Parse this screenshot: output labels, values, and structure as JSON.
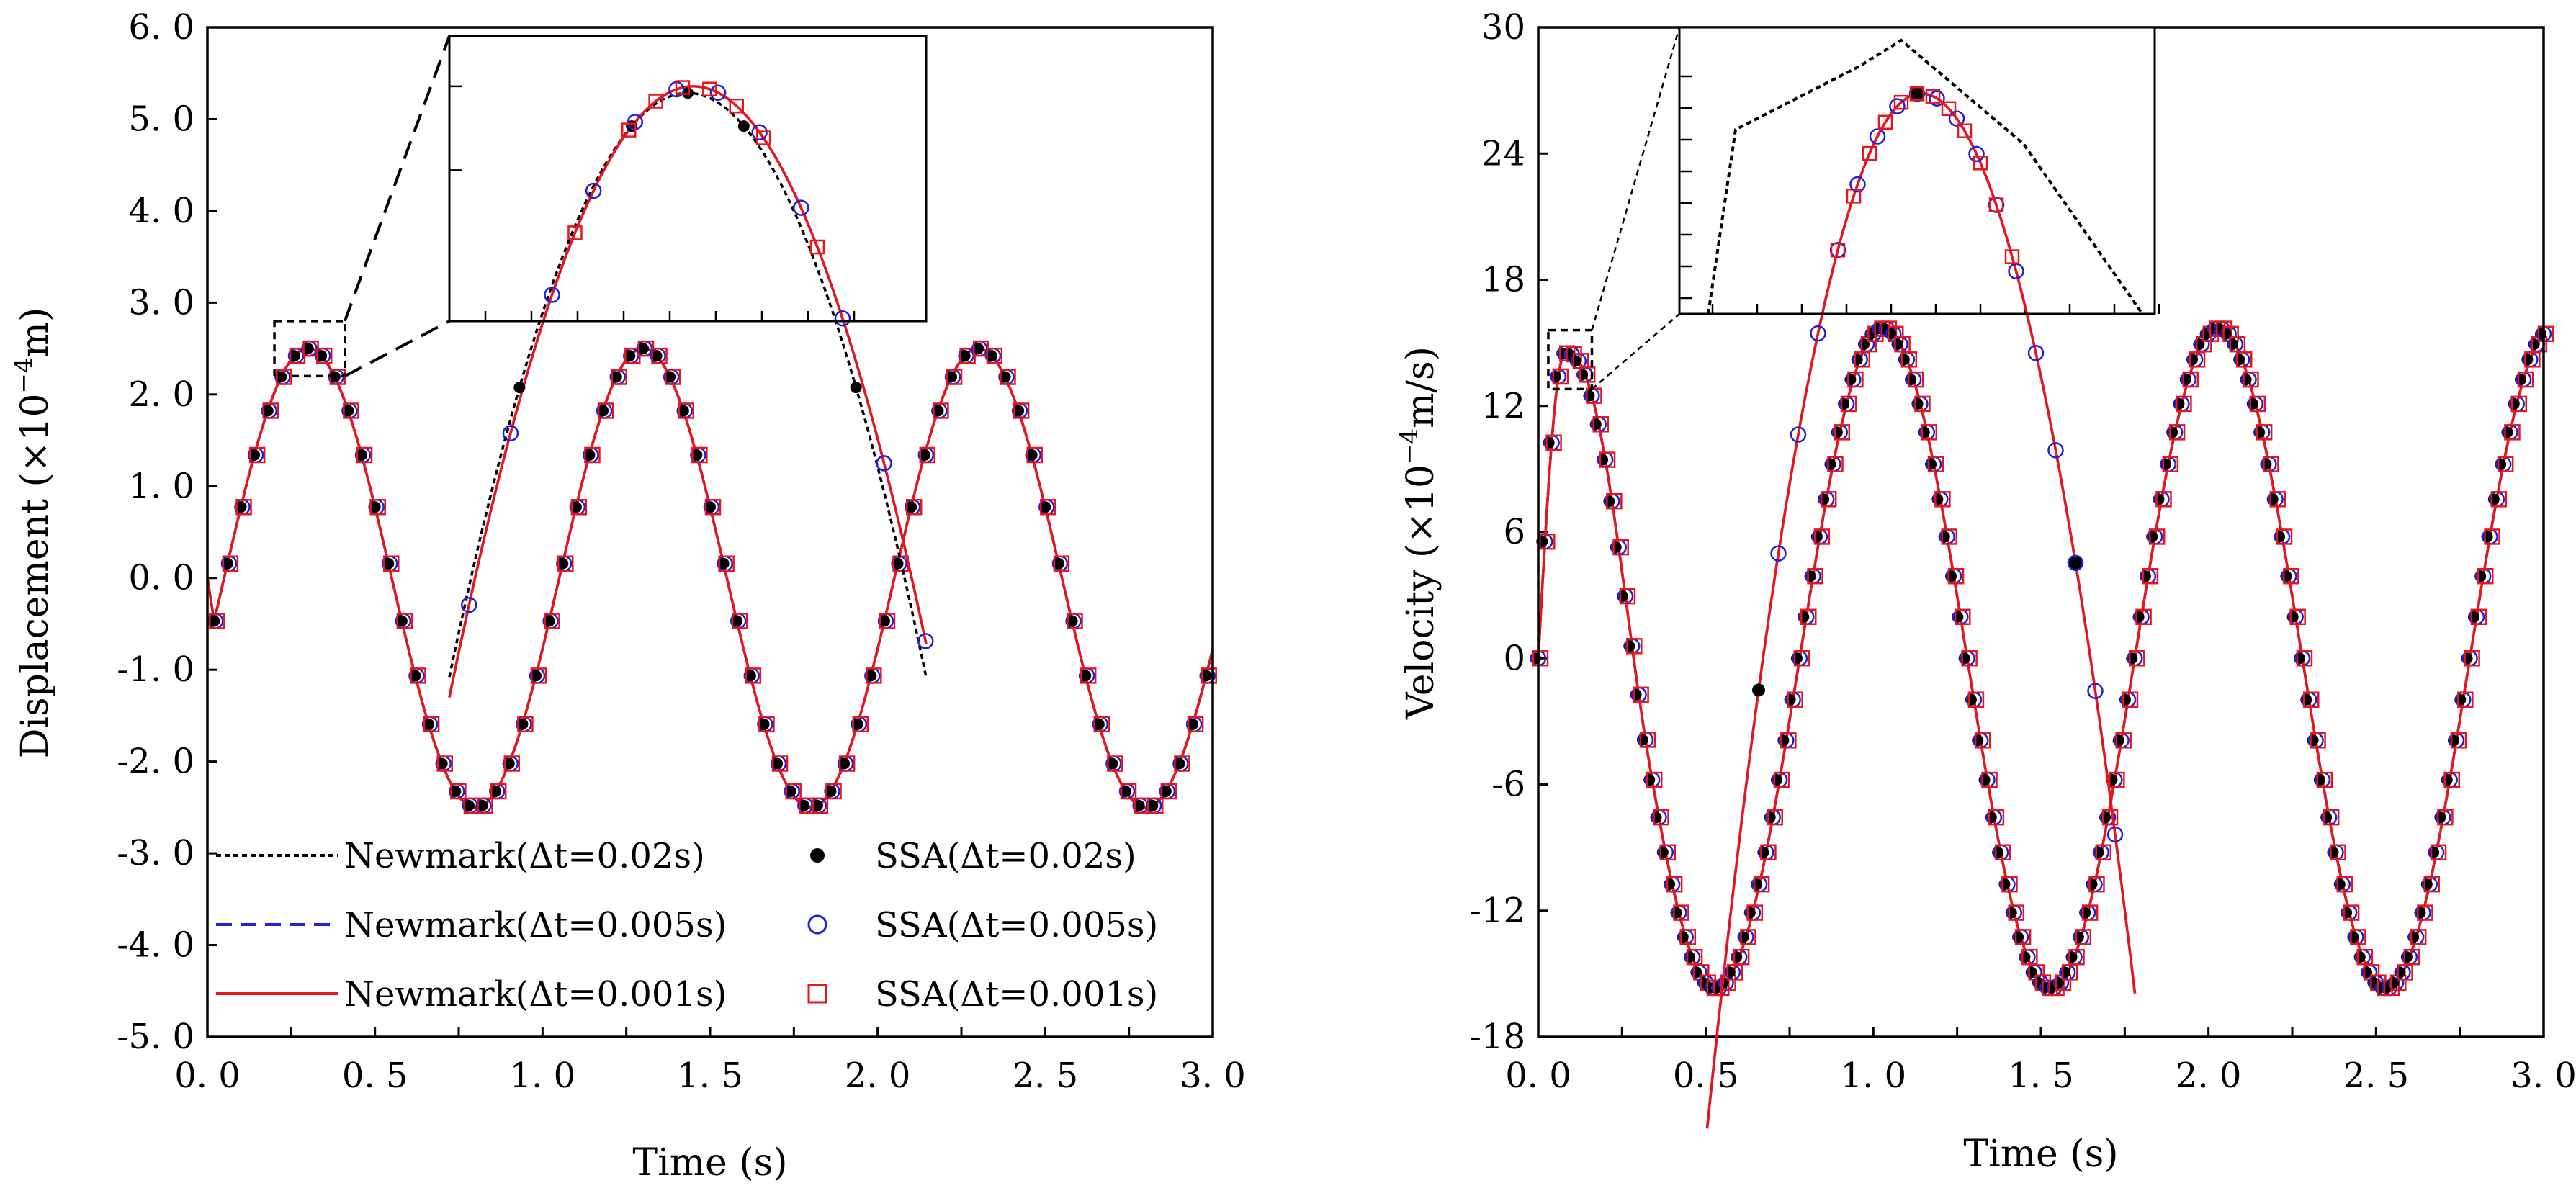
{
  "chart_data": [
    {
      "type": "line",
      "title": "",
      "xlabel": "Time (s)",
      "ylabel_main": "Displacement (×10",
      "ylabel_exp": "−4",
      "ylabel_end": "m)",
      "xlim": [
        0,
        3
      ],
      "ylim": [
        -5,
        6
      ],
      "xticks": [
        "0. 0",
        "0. 5",
        "1. 0",
        "1. 5",
        "2. 0",
        "2. 5",
        "3. 0"
      ],
      "xtick_values": [
        0,
        0.5,
        1,
        1.5,
        2,
        2.5,
        3
      ],
      "yticks": [
        "6. 0",
        "5. 0",
        "4. 0",
        "3. 0",
        "2. 0",
        "1. 0",
        "0. 0",
        "-1. 0",
        "-2. 0",
        "-3. 0",
        "-4. 0",
        "-5. 0"
      ],
      "ytick_values": [
        6,
        5,
        4,
        3,
        2,
        1,
        0,
        -1,
        -2,
        -3,
        -4,
        -5
      ],
      "model": {
        "amplitude": 2.5,
        "period": 1.0,
        "phase_time": 0.3,
        "start_time": 0.05
      },
      "series": [
        {
          "name": "Newmark(Δt=0.02s)",
          "style": "dotted-line",
          "color": "#000000"
        },
        {
          "name": "Newmark(Δt=0.005s)",
          "style": "dashed-line",
          "color": "#1f1fdd"
        },
        {
          "name": "Newmark(Δt=0.001s)",
          "style": "solid-line",
          "color": "#e8161b"
        },
        {
          "name": "SSA(Δt=0.02s)",
          "style": "filled-circle",
          "color": "#000000",
          "step": 0.04
        },
        {
          "name": "SSA(Δt=0.005s)",
          "style": "open-circle",
          "color": "#1f1fdd",
          "step": 0.04
        },
        {
          "name": "SSA(Δt=0.001s)",
          "style": "open-square",
          "color": "#e8161b",
          "step": 0.04
        }
      ],
      "legend": "bottom-left",
      "zoom_window": {
        "x": [
          0.2,
          0.41
        ],
        "y": [
          2.2,
          2.8
        ]
      }
    },
    {
      "type": "line",
      "title": "",
      "xlabel": "Time (s)",
      "ylabel_main": "Velocity (×10",
      "ylabel_exp": "−4",
      "ylabel_end": "m/s)",
      "xlim": [
        0,
        3
      ],
      "ylim": [
        -18,
        30
      ],
      "xticks": [
        "0. 0",
        "0. 5",
        "1. 0",
        "1. 5",
        "2. 0",
        "2. 5",
        "3. 0"
      ],
      "xtick_values": [
        0,
        0.5,
        1,
        1.5,
        2,
        2.5,
        3
      ],
      "yticks": [
        "30",
        "24",
        "18",
        "12",
        "6",
        "0",
        "-6",
        "-12",
        "-18"
      ],
      "ytick_values": [
        30,
        24,
        18,
        12,
        6,
        0,
        -6,
        -12,
        -18
      ],
      "model": {
        "amplitude": 15.7,
        "period": 1.0,
        "peak_time": 1.03,
        "first_peak_time": 0.08,
        "first_peak_value": 14.5
      },
      "series": [
        {
          "name": "Newmark(Δt=0.02s)",
          "style": "dotted-line",
          "color": "#000000"
        },
        {
          "name": "Newmark(Δt=0.005s)",
          "style": "dashed-line",
          "color": "#1f1fdd"
        },
        {
          "name": "Newmark(Δt=0.001s)",
          "style": "solid-line",
          "color": "#e8161b"
        },
        {
          "name": "SSA(Δt=0.02s)",
          "style": "filled-circle",
          "color": "#000000",
          "step": 0.02
        },
        {
          "name": "SSA(Δt=0.005s)",
          "style": "open-circle",
          "color": "#1f1fdd",
          "step": 0.02
        },
        {
          "name": "SSA(Δt=0.001s)",
          "style": "open-square",
          "color": "#e8161b",
          "step": 0.02
        }
      ],
      "zoom_window": {
        "x": [
          0.03,
          0.16
        ],
        "y": [
          12.8,
          15.6
        ]
      }
    }
  ]
}
